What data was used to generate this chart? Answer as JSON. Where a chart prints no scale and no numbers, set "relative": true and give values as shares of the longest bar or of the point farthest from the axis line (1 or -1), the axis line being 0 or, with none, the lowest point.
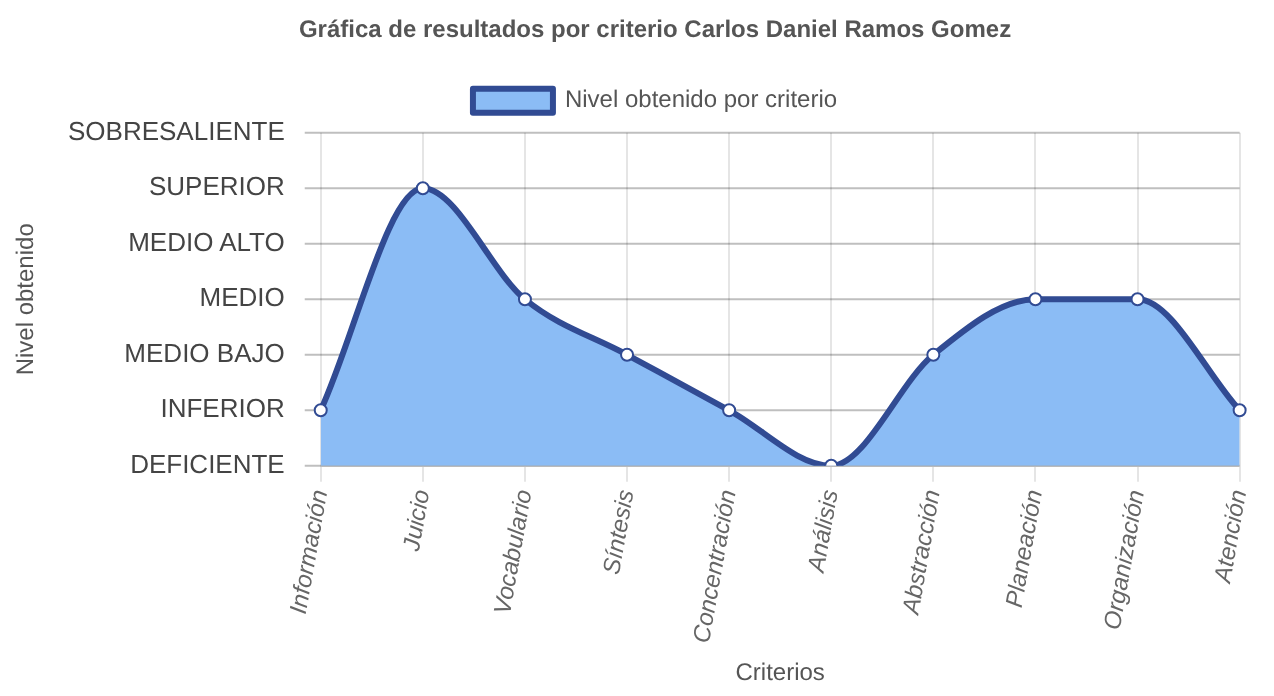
{
  "chart_data": {
    "type": "area",
    "title": "Gráfica de resultados por criterio Carlos Daniel Ramos Gomez",
    "xlabel": "Criterios",
    "relative": true,
    "categories": [
      "Información",
      "Juicio",
      "Vocabulario",
      "Síntesis",
      "Concentración",
      "Análisis",
      "Abstracción",
      "Planeación",
      "Organización",
      "Atención"
    ],
    "series": [
      {
        "name": "Nivel obtenido por criterio",
        "color": "#8bbcf5",
        "values": [
          0.2,
          1,
          0.6,
          0.4,
          0.2,
          0,
          0.4,
          0.6,
          0.6,
          0.2
        ]
      }
    ],
    "annotations": [
      "DEFICIENTE",
      "INFERIOR",
      "MEDIO BAJO",
      "MEDIO",
      "MEDIO ALTO",
      "SUPERIOR",
      "SOBRESALIENTE",
      "Nivel obtenido"
    ],
    "grid": true,
    "legend": "top",
    "marker": "circle",
    "line_style": "solid"
  }
}
